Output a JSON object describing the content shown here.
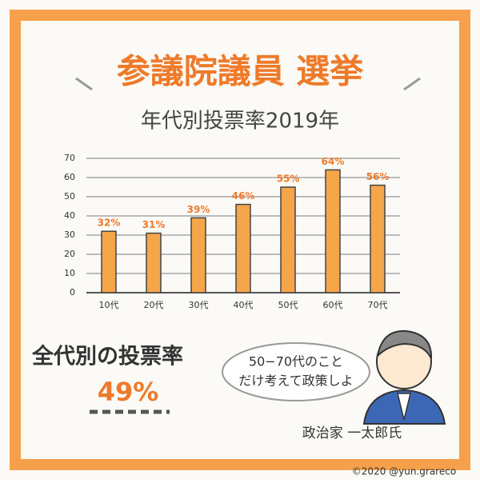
{
  "chart_data": {
    "type": "bar",
    "title": "参議院議員 選挙",
    "subtitle": "年代別投票率2019年",
    "categories": [
      "10代",
      "20代",
      "30代",
      "40代",
      "50代",
      "60代",
      "70代"
    ],
    "values": [
      32,
      31,
      39,
      46,
      55,
      64,
      56
    ],
    "value_labels": [
      "32%",
      "31%",
      "39%",
      "46%",
      "55%",
      "64%",
      "56%"
    ],
    "color": "#f5a54a",
    "ylim": [
      0,
      70
    ],
    "yticks": [
      0,
      10,
      20,
      30,
      40,
      50,
      60,
      70
    ],
    "grid": true,
    "overall": {
      "label": "全代別の投票率",
      "rate": {
        "value": 49,
        "label": "49%"
      }
    },
    "speech": [
      "50−70代のこと",
      "だけ考えて政策しよ"
    ],
    "speaker": "政治家 一太郎氏",
    "credit": "©2020 @yun.grareco"
  }
}
